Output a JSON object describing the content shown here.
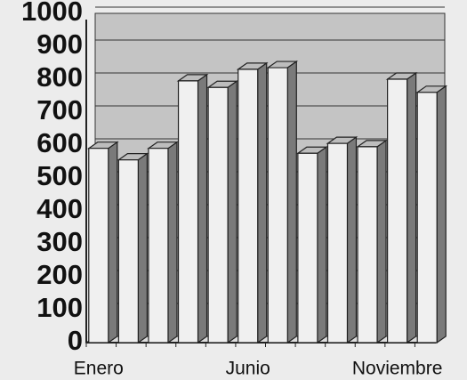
{
  "chart_data": {
    "type": "bar3d",
    "categories": [
      "Enero",
      null,
      null,
      null,
      null,
      "Junio",
      null,
      null,
      null,
      null,
      "Noviembre",
      null
    ],
    "values": [
      590,
      555,
      590,
      795,
      775,
      830,
      835,
      575,
      605,
      595,
      800,
      760
    ],
    "ylim": [
      0,
      1000
    ],
    "yticks": [
      0,
      100,
      200,
      300,
      400,
      500,
      600,
      700,
      800,
      900,
      1000
    ],
    "grid": true,
    "color": "#f0f0f0"
  }
}
